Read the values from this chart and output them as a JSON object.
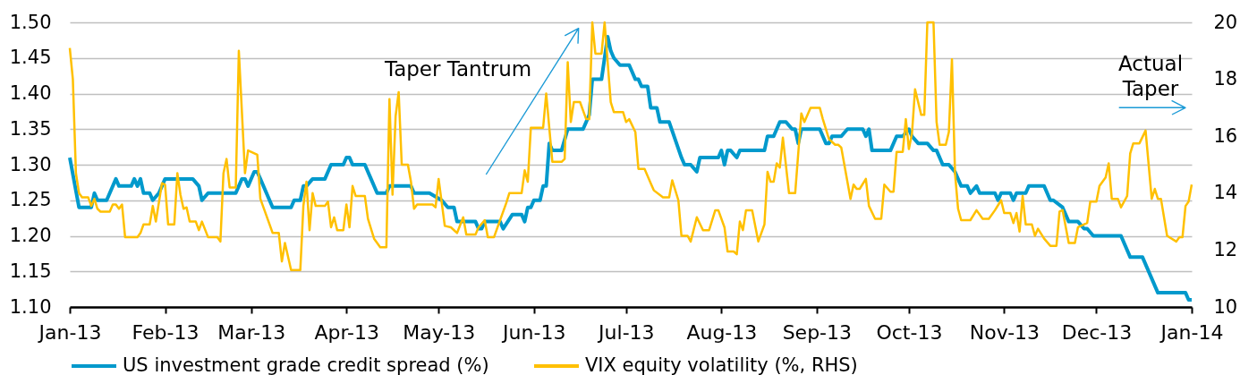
{
  "chart_data": {
    "type": "line",
    "xlim": [
      "2013-01-01",
      "2014-01-01"
    ],
    "xticks": [
      {
        "value": "2013-01-01",
        "label": "Jan-13"
      },
      {
        "value": "2013-02-01",
        "label": "Feb-13"
      },
      {
        "value": "2013-03-01",
        "label": "Mar-13"
      },
      {
        "value": "2013-04-01",
        "label": "Apr-13"
      },
      {
        "value": "2013-05-01",
        "label": "May-13"
      },
      {
        "value": "2013-06-01",
        "label": "Jun-13"
      },
      {
        "value": "2013-07-01",
        "label": "Jul-13"
      },
      {
        "value": "2013-08-01",
        "label": "Aug-13"
      },
      {
        "value": "2013-09-01",
        "label": "Sep-13"
      },
      {
        "value": "2013-10-01",
        "label": "Oct-13"
      },
      {
        "value": "2013-11-01",
        "label": "Nov-13"
      },
      {
        "value": "2013-12-01",
        "label": "Dec-13"
      },
      {
        "value": "2014-01-01",
        "label": "Jan-14"
      }
    ],
    "ylim": [
      1.1,
      1.5
    ],
    "yticks": [
      {
        "value": 1.1,
        "label": "1.10"
      },
      1.15,
      {
        "value": 1.2,
        "label": "1.20"
      },
      1.25,
      {
        "value": 1.3,
        "label": "1.30"
      },
      1.35,
      {
        "value": 1.4,
        "label": "1.40"
      },
      1.45,
      {
        "value": 1.5,
        "label": "1.50"
      }
    ],
    "y2lim": [
      10,
      20
    ],
    "y2ticks": [
      10,
      12,
      14,
      16,
      18,
      20
    ],
    "grid": "y",
    "legend": "bottom",
    "annotations": [
      "Taper Tantrum",
      "Actual Taper"
    ],
    "series": [
      {
        "name": "US investment grade credit spread (%)",
        "color": "#0099cc",
        "x": [
          "2013-01-01",
          "2013-01-04",
          "2013-01-08",
          "2013-01-09",
          "2013-01-10",
          "2013-01-13",
          "2013-01-16",
          "2013-01-17",
          "2013-01-21",
          "2013-01-22",
          "2013-01-23",
          "2013-01-24",
          "2013-01-25",
          "2013-01-27",
          "2013-01-28",
          "2013-01-30",
          "2013-02-01",
          "2013-02-10",
          "2013-02-12",
          "2013-02-13",
          "2013-02-15",
          "2013-02-24",
          "2013-02-25",
          "2013-02-26",
          "2013-02-27",
          "2013-02-28",
          "2013-03-02",
          "2013-03-03",
          "2013-03-04",
          "2013-03-08",
          "2013-03-14",
          "2013-03-15",
          "2013-03-17",
          "2013-03-18",
          "2013-03-19",
          "2013-03-21",
          "2013-03-25",
          "2013-03-27",
          "2013-03-31",
          "2013-04-01",
          "2013-04-02",
          "2013-04-03",
          "2013-04-07",
          "2013-04-09",
          "2013-04-11",
          "2013-04-14",
          "2013-04-15",
          "2013-04-22",
          "2013-04-23",
          "2013-04-28",
          "2013-05-02",
          "2013-05-04",
          "2013-05-06",
          "2013-05-07",
          "2013-05-13",
          "2013-05-14",
          "2013-05-15",
          "2013-05-16",
          "2013-05-21",
          "2013-05-22",
          "2013-05-25",
          "2013-05-28",
          "2013-05-29",
          "2013-05-30",
          "2013-05-31",
          "2013-06-01",
          "2013-06-03",
          "2013-06-04",
          "2013-06-05",
          "2013-06-06",
          "2013-06-07",
          "2013-06-10",
          "2013-06-12",
          "2013-06-17",
          "2013-06-19",
          "2013-06-20",
          "2013-06-23",
          "2013-06-25",
          "2013-06-26",
          "2013-06-27",
          "2013-06-29",
          "2013-07-02",
          "2013-07-04",
          "2013-07-05",
          "2013-07-06",
          "2013-07-08",
          "2013-07-09",
          "2013-07-11",
          "2013-07-12",
          "2013-07-15",
          "2013-07-19",
          "2013-07-20",
          "2013-07-22",
          "2013-07-24",
          "2013-07-25",
          "2013-07-31",
          "2013-08-01",
          "2013-08-02",
          "2013-08-03",
          "2013-08-04",
          "2013-08-06",
          "2013-08-07",
          "2013-08-15",
          "2013-08-16",
          "2013-08-18",
          "2013-08-20",
          "2013-08-22",
          "2013-08-24",
          "2013-08-25",
          "2013-08-26",
          "2013-08-27",
          "2013-09-02",
          "2013-09-04",
          "2013-09-05",
          "2013-09-06",
          "2013-09-09",
          "2013-09-11",
          "2013-09-16",
          "2013-09-17",
          "2013-09-18",
          "2013-09-19",
          "2013-09-25",
          "2013-09-27",
          "2013-09-29",
          "2013-10-01",
          "2013-10-02",
          "2013-10-04",
          "2013-10-07",
          "2013-10-09",
          "2013-10-10",
          "2013-10-12",
          "2013-10-14",
          "2013-10-16",
          "2013-10-18",
          "2013-10-20",
          "2013-10-21",
          "2013-10-23",
          "2013-10-24",
          "2013-10-29",
          "2013-10-30",
          "2013-10-31",
          "2013-11-03",
          "2013-11-04",
          "2013-11-05",
          "2013-11-08",
          "2013-11-09",
          "2013-11-14",
          "2013-11-16",
          "2013-11-17",
          "2013-11-20",
          "2013-11-22",
          "2013-11-25",
          "2013-11-27",
          "2013-11-28",
          "2013-11-30",
          "2013-12-09",
          "2013-12-12",
          "2013-12-16",
          "2013-12-21",
          "2013-12-30",
          "2013-12-31",
          "2014-01-01"
        ],
        "values": [
          1.31,
          1.24,
          1.24,
          1.26,
          1.25,
          1.25,
          1.28,
          1.27,
          1.27,
          1.28,
          1.27,
          1.28,
          1.26,
          1.26,
          1.25,
          1.26,
          1.28,
          1.28,
          1.27,
          1.25,
          1.26,
          1.26,
          1.27,
          1.28,
          1.28,
          1.27,
          1.29,
          1.29,
          1.28,
          1.24,
          1.24,
          1.25,
          1.25,
          1.27,
          1.27,
          1.28,
          1.28,
          1.3,
          1.3,
          1.31,
          1.31,
          1.3,
          1.3,
          1.28,
          1.26,
          1.26,
          1.27,
          1.27,
          1.26,
          1.26,
          1.25,
          1.24,
          1.24,
          1.22,
          1.22,
          1.21,
          1.21,
          1.22,
          1.22,
          1.21,
          1.23,
          1.23,
          1.22,
          1.24,
          1.24,
          1.25,
          1.25,
          1.27,
          1.27,
          1.33,
          1.32,
          1.32,
          1.35,
          1.35,
          1.37,
          1.42,
          1.42,
          1.48,
          1.46,
          1.45,
          1.44,
          1.44,
          1.42,
          1.42,
          1.41,
          1.41,
          1.38,
          1.38,
          1.36,
          1.36,
          1.31,
          1.3,
          1.3,
          1.29,
          1.31,
          1.31,
          1.32,
          1.3,
          1.32,
          1.32,
          1.31,
          1.32,
          1.32,
          1.34,
          1.34,
          1.36,
          1.36,
          1.35,
          1.35,
          1.33,
          1.35,
          1.35,
          1.33,
          1.33,
          1.34,
          1.34,
          1.35,
          1.35,
          1.34,
          1.35,
          1.32,
          1.32,
          1.34,
          1.34,
          1.35,
          1.34,
          1.33,
          1.33,
          1.32,
          1.32,
          1.3,
          1.3,
          1.29,
          1.27,
          1.27,
          1.26,
          1.27,
          1.26,
          1.26,
          1.25,
          1.26,
          1.26,
          1.25,
          1.26,
          1.26,
          1.27,
          1.27,
          1.25,
          1.25,
          1.24,
          1.22,
          1.22,
          1.21,
          1.21,
          1.2,
          1.2,
          1.17,
          1.17,
          1.12,
          1.12,
          1.11,
          1.11
        ]
      },
      {
        "name": "VIX equity volatility (%, RHS)",
        "color": "#ffc000",
        "axis": "y2",
        "x": [
          "2013-01-01",
          "2013-01-02",
          "2013-01-03",
          "2013-01-04",
          "2013-01-05",
          "2013-01-07",
          "2013-01-08",
          "2013-01-09",
          "2013-01-10",
          "2013-01-11",
          "2013-01-14",
          "2013-01-15",
          "2013-01-16",
          "2013-01-17",
          "2013-01-18",
          "2013-01-19",
          "2013-01-23",
          "2013-01-24",
          "2013-01-25",
          "2013-01-27",
          "2013-01-28",
          "2013-01-29",
          "2013-01-31",
          "2013-02-01",
          "2013-02-02",
          "2013-02-04",
          "2013-02-05",
          "2013-02-06",
          "2013-02-07",
          "2013-02-08",
          "2013-02-09",
          "2013-02-11",
          "2013-02-12",
          "2013-02-13",
          "2013-02-15",
          "2013-02-18",
          "2013-02-19",
          "2013-02-20",
          "2013-02-21",
          "2013-02-22",
          "2013-02-24",
          "2013-02-25",
          "2013-02-27",
          "2013-02-28",
          "2013-03-03",
          "2013-03-04",
          "2013-03-05",
          "2013-03-08",
          "2013-03-10",
          "2013-03-11",
          "2013-03-12",
          "2013-03-14",
          "2013-03-17",
          "2013-03-18",
          "2013-03-19",
          "2013-03-20",
          "2013-03-21",
          "2013-03-22",
          "2013-03-25",
          "2013-03-26",
          "2013-03-27",
          "2013-03-28",
          "2013-03-29",
          "2013-03-31",
          "2013-04-01",
          "2013-04-02",
          "2013-04-03",
          "2013-04-04",
          "2013-04-07",
          "2013-04-08",
          "2013-04-10",
          "2013-04-12",
          "2013-04-14",
          "2013-04-15",
          "2013-04-16",
          "2013-04-17",
          "2013-04-18",
          "2013-04-19",
          "2013-04-21",
          "2013-04-22",
          "2013-04-23",
          "2013-04-24",
          "2013-04-29",
          "2013-04-30",
          "2013-05-01",
          "2013-05-03",
          "2013-05-05",
          "2013-05-07",
          "2013-05-09",
          "2013-05-10",
          "2013-05-13",
          "2013-05-14",
          "2013-05-16",
          "2013-05-17",
          "2013-05-19",
          "2013-05-23",
          "2013-05-24",
          "2013-05-28",
          "2013-05-29",
          "2013-05-30",
          "2013-05-31",
          "2013-06-04",
          "2013-06-05",
          "2013-06-07",
          "2013-06-10",
          "2013-06-11",
          "2013-06-12",
          "2013-06-13",
          "2013-06-14",
          "2013-06-16",
          "2013-06-18",
          "2013-06-19",
          "2013-06-20",
          "2013-06-21",
          "2013-06-23",
          "2013-06-24",
          "2013-06-26",
          "2013-06-27",
          "2013-06-30",
          "2013-07-01",
          "2013-07-02",
          "2013-07-04",
          "2013-07-05",
          "2013-07-07",
          "2013-07-09",
          "2013-07-10",
          "2013-07-13",
          "2013-07-15",
          "2013-07-16",
          "2013-07-18",
          "2013-07-19",
          "2013-07-21",
          "2013-07-22",
          "2013-07-24",
          "2013-07-26",
          "2013-07-28",
          "2013-07-30",
          "2013-07-31",
          "2013-08-02",
          "2013-08-03",
          "2013-08-05",
          "2013-08-06",
          "2013-08-07",
          "2013-08-08",
          "2013-08-09",
          "2013-08-11",
          "2013-08-13",
          "2013-08-15",
          "2013-08-16",
          "2013-08-17",
          "2013-08-18",
          "2013-08-19",
          "2013-08-20",
          "2013-08-21",
          "2013-08-23",
          "2013-08-25",
          "2013-08-27",
          "2013-08-28",
          "2013-08-30",
          "2013-09-02",
          "2013-09-03",
          "2013-09-05",
          "2013-09-07",
          "2013-09-08",
          "2013-09-09",
          "2013-09-12",
          "2013-09-13",
          "2013-09-14",
          "2013-09-15",
          "2013-09-17",
          "2013-09-18",
          "2013-09-20",
          "2013-09-22",
          "2013-09-23",
          "2013-09-25",
          "2013-09-26",
          "2013-09-27",
          "2013-09-29",
          "2013-09-30",
          "2013-10-01",
          "2013-10-02",
          "2013-10-03",
          "2013-10-05",
          "2013-10-06",
          "2013-10-07",
          "2013-10-09",
          "2013-10-10",
          "2013-10-11",
          "2013-10-13",
          "2013-10-14",
          "2013-10-15",
          "2013-10-16",
          "2013-10-17",
          "2013-10-18",
          "2013-10-21",
          "2013-10-23",
          "2013-10-25",
          "2013-10-27",
          "2013-10-29",
          "2013-10-31",
          "2013-11-01",
          "2013-11-03",
          "2013-11-04",
          "2013-11-05",
          "2013-11-06",
          "2013-11-07",
          "2013-11-08",
          "2013-11-10",
          "2013-11-11",
          "2013-11-12",
          "2013-11-14",
          "2013-11-16",
          "2013-11-18",
          "2013-11-19",
          "2013-11-20",
          "2013-11-22",
          "2013-11-24",
          "2013-11-25",
          "2013-11-28",
          "2013-11-29",
          "2013-12-01",
          "2013-12-02",
          "2013-12-04",
          "2013-12-05",
          "2013-12-06",
          "2013-12-08",
          "2013-12-09",
          "2013-12-11",
          "2013-12-12",
          "2013-12-13",
          "2013-12-15",
          "2013-12-17",
          "2013-12-19",
          "2013-12-20",
          "2013-12-21",
          "2013-12-22",
          "2013-12-24",
          "2013-12-27",
          "2013-12-28",
          "2013-12-29",
          "2013-12-30",
          "2013-12-31",
          "2014-01-01"
        ],
        "values": [
          19.1,
          18.0,
          14.7,
          14.0,
          13.85,
          13.85,
          13.55,
          13.8,
          13.45,
          13.35,
          13.35,
          13.6,
          13.6,
          13.45,
          13.6,
          12.45,
          12.45,
          12.6,
          12.9,
          12.9,
          13.55,
          13.0,
          14.35,
          14.3,
          12.9,
          12.9,
          14.7,
          13.95,
          13.45,
          13.5,
          13.0,
          13.0,
          12.7,
          13.0,
          12.45,
          12.45,
          12.3,
          14.7,
          15.2,
          14.2,
          14.2,
          19.0,
          14.7,
          15.5,
          15.35,
          13.8,
          13.5,
          12.6,
          12.6,
          11.6,
          12.25,
          11.3,
          11.3,
          13.55,
          14.4,
          12.7,
          14.0,
          13.55,
          13.55,
          13.7,
          12.8,
          13.15,
          12.7,
          12.7,
          13.6,
          12.8,
          14.25,
          13.9,
          13.9,
          13.1,
          12.4,
          12.1,
          12.1,
          17.3,
          13.95,
          16.7,
          17.55,
          15.0,
          15.0,
          14.4,
          13.45,
          13.6,
          13.6,
          13.5,
          14.5,
          12.85,
          12.8,
          12.6,
          13.15,
          12.55,
          12.55,
          12.8,
          13.05,
          12.45,
          12.45,
          13.65,
          14.0,
          14.0,
          14.8,
          14.4,
          16.3,
          16.3,
          17.5,
          15.1,
          15.1,
          15.2,
          18.6,
          16.5,
          17.2,
          17.2,
          16.6,
          16.6,
          20.0,
          18.9,
          18.9,
          20.0,
          17.2,
          16.85,
          16.85,
          16.5,
          16.6,
          16.15,
          14.85,
          14.85,
          14.35,
          14.1,
          13.85,
          13.85,
          14.45,
          13.75,
          12.5,
          12.5,
          12.3,
          13.15,
          12.7,
          12.7,
          13.4,
          13.4,
          12.8,
          11.95,
          11.95,
          11.85,
          13.0,
          12.7,
          13.4,
          13.4,
          12.3,
          12.9,
          14.75,
          14.4,
          14.4,
          15.05,
          14.9,
          15.95,
          14.0,
          14.0,
          16.8,
          16.5,
          17.0,
          17.0,
          16.6,
          15.9,
          15.7,
          15.7,
          15.6,
          13.8,
          14.3,
          14.15,
          14.15,
          14.5,
          13.55,
          13.1,
          13.1,
          14.3,
          14.05,
          14.05,
          15.45,
          15.45,
          16.6,
          15.55,
          16.1,
          17.65,
          16.75,
          16.75,
          20.0,
          20.0,
          16.5,
          15.7,
          15.7,
          16.15,
          18.7,
          14.7,
          13.45,
          13.05,
          13.05,
          13.4,
          13.1,
          13.1,
          13.4,
          13.75,
          13.3,
          13.3,
          12.95,
          13.3,
          12.65,
          13.9,
          12.9,
          12.9,
          12.5,
          12.75,
          12.4,
          12.15,
          12.15,
          13.35,
          13.4,
          12.25,
          12.25,
          12.8,
          12.95,
          13.7,
          13.7,
          14.25,
          14.55,
          15.05,
          13.8,
          13.8,
          13.5,
          13.9,
          15.4,
          15.75,
          15.75,
          16.2,
          13.8,
          14.15,
          13.8,
          13.8,
          12.5,
          12.3,
          12.45,
          12.45,
          13.55,
          13.7,
          14.3
        ]
      }
    ]
  }
}
